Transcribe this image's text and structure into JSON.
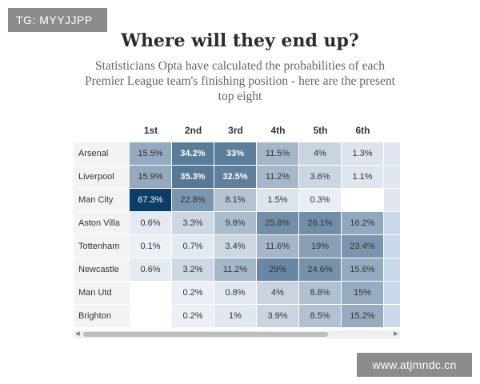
{
  "watermarks": {
    "top_left": "TG: MYYJJPP",
    "bottom_right": "www.atjmndc.cn"
  },
  "chart_data": {
    "type": "heatmap",
    "title": "Where will they end up?",
    "subtitle": "Statisticians Opta have calculated the probabilities of each Premier League team's finishing position - here are the present top eight",
    "columns": [
      "1st",
      "2nd",
      "3rd",
      "4th",
      "5th",
      "6th"
    ],
    "rows": [
      {
        "team": "Arsenal",
        "values": [
          "15.5%",
          "34.2%",
          "33%",
          "11.5%",
          "4%",
          "1.3%"
        ]
      },
      {
        "team": "Liverpool",
        "values": [
          "15.9%",
          "35.3%",
          "32.5%",
          "11.2%",
          "3.6%",
          "1.1%"
        ]
      },
      {
        "team": "Man City",
        "values": [
          "67.3%",
          "22.8%",
          "8.1%",
          "1.5%",
          "0.3%",
          ""
        ]
      },
      {
        "team": "Aston Villa",
        "values": [
          "0.6%",
          "3.3%",
          "9.8%",
          "25.8%",
          "26.1%",
          "16.2%"
        ]
      },
      {
        "team": "Tottenham",
        "values": [
          "0.1%",
          "0.7%",
          "3.4%",
          "11.6%",
          "19%",
          "23.4%"
        ]
      },
      {
        "team": "Newcastle",
        "values": [
          "0.6%",
          "3.2%",
          "11.2%",
          "29%",
          "24.6%",
          "15.6%"
        ]
      },
      {
        "team": "Man Utd",
        "values": [
          "",
          "0.2%",
          "0.8%",
          "4%",
          "8.8%",
          "15%"
        ]
      },
      {
        "team": "Brighton",
        "values": [
          "",
          "0.2%",
          "1%",
          "3.9%",
          "8.5%",
          "15.2%"
        ]
      }
    ],
    "color_scale": {
      "low": "#f1f4fa",
      "high": "#0b3d66"
    }
  }
}
